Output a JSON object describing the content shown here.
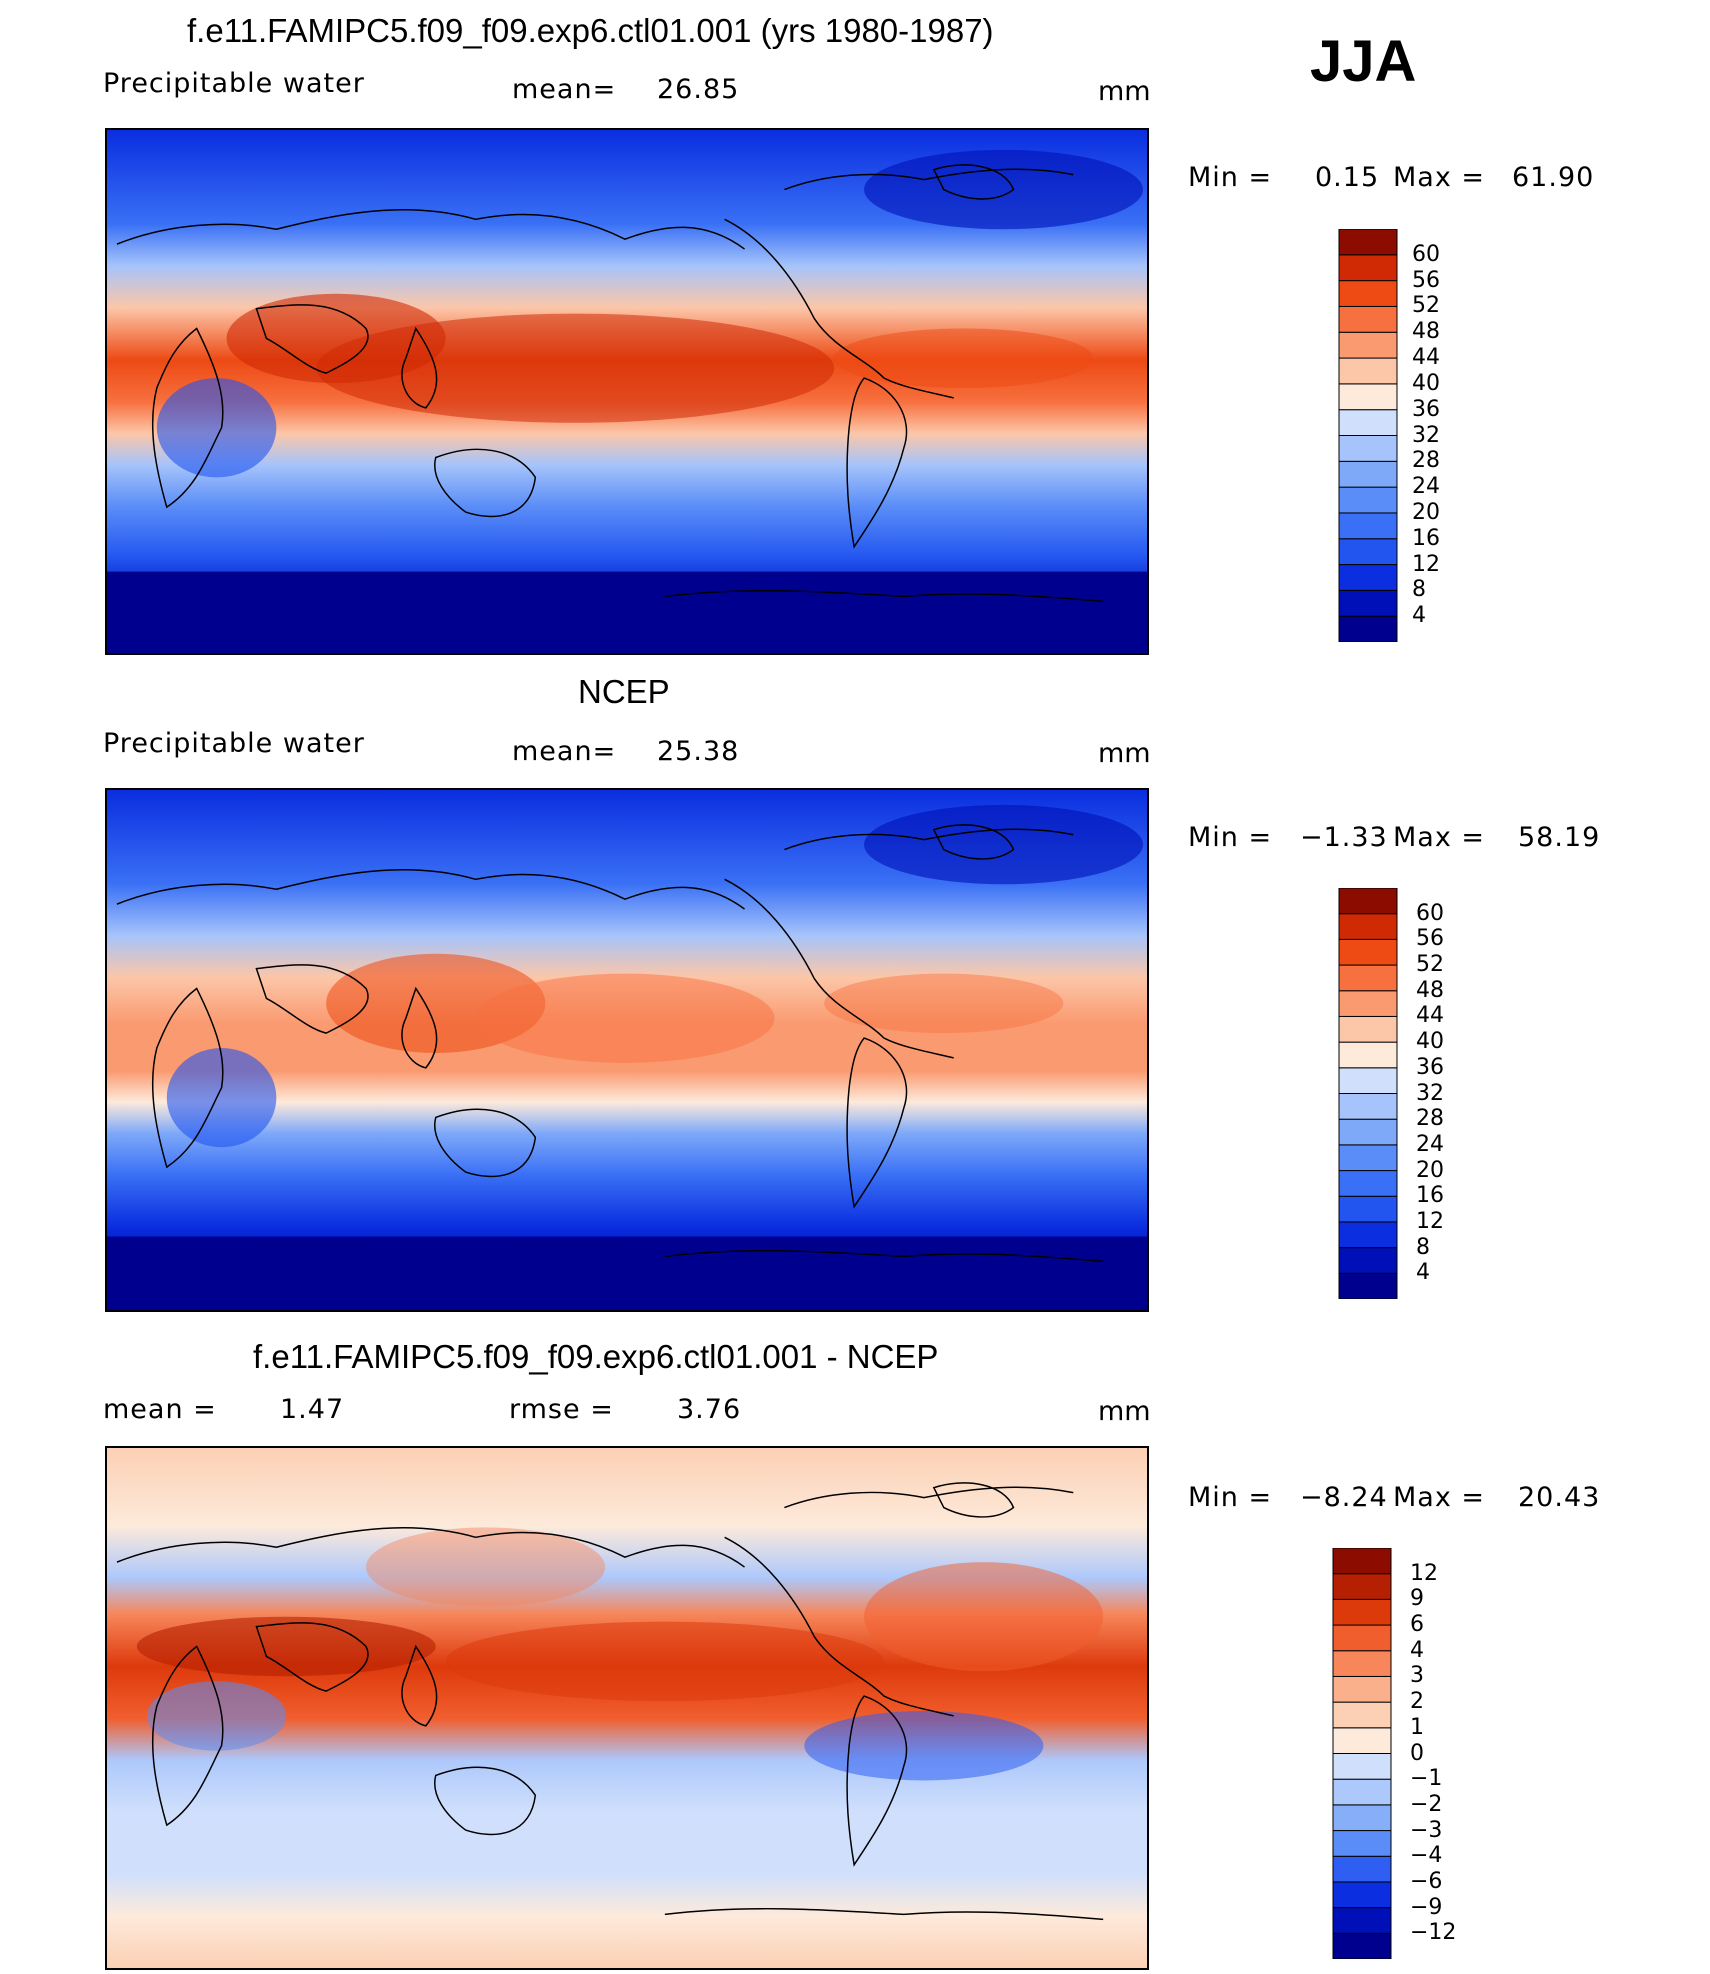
{
  "season": "JJA",
  "panels": [
    {
      "title": "f.e11.FAMIPC5.f09_f09.exp6.ctl01.001 (yrs 1980-1987)",
      "variable": "Precipitable water",
      "mean_label": "mean=",
      "mean_value": "26.85",
      "units": "mm",
      "min_label": "Min =",
      "min_value": "0.15",
      "max_label": "Max =",
      "max_value": "61.90",
      "levels": [
        "60",
        "56",
        "52",
        "48",
        "44",
        "40",
        "36",
        "32",
        "28",
        "24",
        "20",
        "16",
        "12",
        "8",
        "4"
      ]
    },
    {
      "title": "NCEP",
      "variable": "Precipitable water",
      "mean_label": "mean=",
      "mean_value": "25.38",
      "units": "mm",
      "min_label": "Min =",
      "min_value": "−1.33",
      "max_label": "Max =",
      "max_value": "58.19",
      "levels": [
        "60",
        "56",
        "52",
        "48",
        "44",
        "40",
        "36",
        "32",
        "28",
        "24",
        "20",
        "16",
        "12",
        "8",
        "4"
      ]
    },
    {
      "title": "f.e11.FAMIPC5.f09_f09.exp6.ctl01.001 - NCEP",
      "mean_label": "mean =",
      "mean_value": "1.47",
      "rmse_label": "rmse =",
      "rmse_value": "3.76",
      "units": "mm",
      "min_label": "Min =",
      "min_value": "−8.24",
      "max_label": "Max =",
      "max_value": "20.43",
      "levels": [
        "12",
        "9",
        "6",
        "4",
        "3",
        "2",
        "1",
        "0",
        "−1",
        "−2",
        "−3",
        "−4",
        "−6",
        "−9",
        "−12"
      ]
    }
  ],
  "colors": {
    "abs_scale": [
      "#00008f",
      "#0010b8",
      "#0a2ee0",
      "#2255f0",
      "#3a70f5",
      "#5a8df7",
      "#7ea9f9",
      "#a6c4fb",
      "#d0e0fc",
      "#fdeadb",
      "#fcc6a8",
      "#fa9a70",
      "#f7703f",
      "#ed4a14",
      "#d02a05",
      "#8c0d00"
    ],
    "diff_scale": [
      "#00008f",
      "#0010b8",
      "#0a2ee0",
      "#2f5ef2",
      "#5a8df7",
      "#86aef9",
      "#adc8fb",
      "#d0e0fc",
      "#fdeadb",
      "#fcd0b4",
      "#fab08a",
      "#f7865a",
      "#f15e2e",
      "#dd3a0c",
      "#b51f02",
      "#8c0d00"
    ],
    "frame": "#000000"
  }
}
